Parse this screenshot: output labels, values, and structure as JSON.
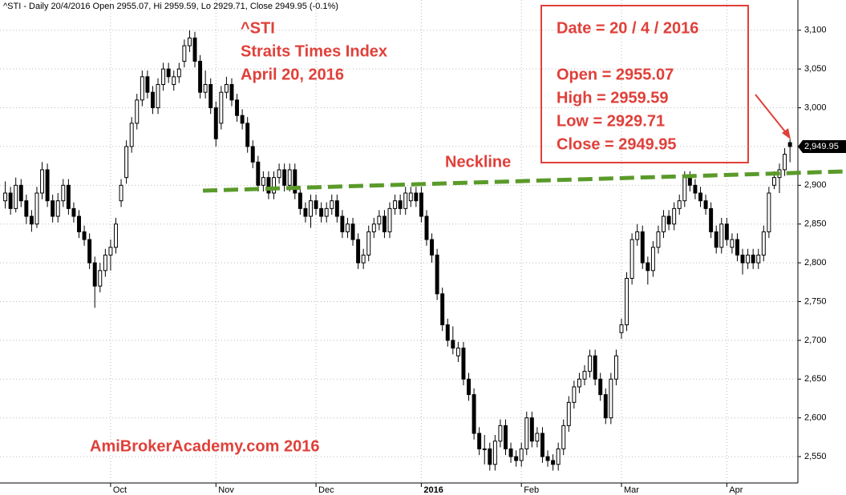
{
  "chart_data": {
    "type": "candlestick",
    "header": "^STI - Daily 20/4/2016 Open 2955.07, Hi 2959.59, Lo 2929.71, Close 2949.95 (-0.1%)",
    "annotations": [
      "^STI",
      "Straits Times Index",
      "April 20, 2016"
    ],
    "info_box": [
      "Date  = 20 / 4 / 2016",
      "Open = 2955.07",
      "High  = 2959.59",
      "Low    = 2929.71",
      "Close = 2949.95"
    ],
    "neckline_label": "Neckline",
    "watermark": "AmiBrokerAcademy.com  2016",
    "last_price": {
      "value": 2949.95,
      "label": "2,949.95"
    },
    "up_color": "#ffffff",
    "down_color": "#000000",
    "grid": true,
    "xlim": [
      -1,
      150.5
    ],
    "xticks": [
      {
        "value": 20,
        "label": "Oct"
      },
      {
        "value": 40,
        "label": "Nov"
      },
      {
        "value": 59,
        "label": "Dec"
      },
      {
        "value": 79,
        "label": "2016"
      },
      {
        "value": 98,
        "label": "Feb"
      },
      {
        "value": 117,
        "label": "Mar"
      },
      {
        "value": 137,
        "label": "Apr"
      }
    ],
    "ylim": [
      2516,
      3139
    ],
    "yticks": [
      {
        "value": 2550,
        "label": "2,550"
      },
      {
        "value": 2600,
        "label": "2,600"
      },
      {
        "value": 2650,
        "label": "2,650"
      },
      {
        "value": 2700,
        "label": "2,700"
      },
      {
        "value": 2750,
        "label": "2,750"
      },
      {
        "value": 2800,
        "label": "2,800"
      },
      {
        "value": 2850,
        "label": "2,850"
      },
      {
        "value": 2900,
        "label": "2,900"
      },
      {
        "value": 2950,
        "label": "2,950"
      },
      {
        "value": 3000,
        "label": "3,000"
      },
      {
        "value": 3050,
        "label": "3,050"
      },
      {
        "value": 3100,
        "label": "3,100"
      }
    ],
    "candles": [
      [
        2880,
        2905,
        2870,
        2890
      ],
      [
        2890,
        2898,
        2862,
        2870
      ],
      [
        2870,
        2910,
        2865,
        2900
      ],
      [
        2900,
        2908,
        2872,
        2880
      ],
      [
        2880,
        2888,
        2850,
        2860
      ],
      [
        2860,
        2868,
        2840,
        2850
      ],
      [
        2850,
        2898,
        2845,
        2890
      ],
      [
        2890,
        2930,
        2882,
        2920
      ],
      [
        2920,
        2928,
        2872,
        2880
      ],
      [
        2880,
        2888,
        2852,
        2860
      ],
      [
        2860,
        2890,
        2852,
        2880
      ],
      [
        2880,
        2908,
        2872,
        2900
      ],
      [
        2900,
        2908,
        2862,
        2870
      ],
      [
        2870,
        2878,
        2852,
        2860
      ],
      [
        2860,
        2868,
        2832,
        2840
      ],
      [
        2840,
        2848,
        2822,
        2830
      ],
      [
        2830,
        2838,
        2792,
        2800
      ],
      [
        2800,
        2808,
        2742,
        2770
      ],
      [
        2770,
        2800,
        2762,
        2790
      ],
      [
        2790,
        2818,
        2782,
        2810
      ],
      [
        2810,
        2830,
        2790,
        2820
      ],
      [
        2820,
        2858,
        2812,
        2850
      ],
      [
        2880,
        2908,
        2872,
        2900
      ],
      [
        2910,
        2958,
        2902,
        2950
      ],
      [
        2950,
        2988,
        2942,
        2980
      ],
      [
        2980,
        3018,
        2972,
        3010
      ],
      [
        3010,
        3048,
        3002,
        3040
      ],
      [
        3040,
        3048,
        3012,
        3020
      ],
      [
        3020,
        3028,
        2992,
        3000
      ],
      [
        3000,
        3038,
        2992,
        3030
      ],
      [
        3030,
        3058,
        3022,
        3050
      ],
      [
        3050,
        3058,
        3032,
        3040
      ],
      [
        3030,
        3048,
        3022,
        3040
      ],
      [
        3040,
        3058,
        3032,
        3050
      ],
      [
        3060,
        3088,
        3052,
        3080
      ],
      [
        3080,
        3100,
        3072,
        3090
      ],
      [
        3090,
        3098,
        3052,
        3060
      ],
      [
        3060,
        3068,
        3012,
        3020
      ],
      [
        3020,
        3048,
        3012,
        3030
      ],
      [
        3030,
        3038,
        2992,
        3000
      ],
      [
        3000,
        3008,
        2950,
        2960
      ],
      [
        2980,
        3028,
        2972,
        3020
      ],
      [
        3020,
        3040,
        3012,
        3030
      ],
      [
        3030,
        3038,
        3002,
        3010
      ],
      [
        3010,
        3018,
        2982,
        2990
      ],
      [
        2990,
        2998,
        2972,
        2980
      ],
      [
        2980,
        2988,
        2942,
        2950
      ],
      [
        2950,
        2958,
        2922,
        2930
      ],
      [
        2930,
        2938,
        2892,
        2900
      ],
      [
        2900,
        2918,
        2892,
        2910
      ],
      [
        2910,
        2918,
        2882,
        2890
      ],
      [
        2890,
        2918,
        2882,
        2910
      ],
      [
        2910,
        2928,
        2902,
        2920
      ],
      [
        2920,
        2928,
        2892,
        2900
      ],
      [
        2900,
        2928,
        2892,
        2920
      ],
      [
        2920,
        2928,
        2882,
        2890
      ],
      [
        2890,
        2898,
        2862,
        2870
      ],
      [
        2870,
        2878,
        2852,
        2860
      ],
      [
        2860,
        2888,
        2845,
        2880
      ],
      [
        2880,
        2888,
        2862,
        2870
      ],
      [
        2870,
        2878,
        2852,
        2860
      ],
      [
        2860,
        2878,
        2852,
        2870
      ],
      [
        2870,
        2888,
        2862,
        2880
      ],
      [
        2880,
        2888,
        2852,
        2860
      ],
      [
        2860,
        2868,
        2832,
        2840
      ],
      [
        2840,
        2858,
        2832,
        2850
      ],
      [
        2850,
        2858,
        2822,
        2830
      ],
      [
        2830,
        2838,
        2792,
        2800
      ],
      [
        2800,
        2818,
        2792,
        2810
      ],
      [
        2810,
        2848,
        2802,
        2840
      ],
      [
        2840,
        2858,
        2832,
        2850
      ],
      [
        2850,
        2868,
        2842,
        2860
      ],
      [
        2860,
        2868,
        2832,
        2840
      ],
      [
        2840,
        2878,
        2832,
        2870
      ],
      [
        2870,
        2888,
        2862,
        2880
      ],
      [
        2880,
        2888,
        2862,
        2870
      ],
      [
        2870,
        2898,
        2862,
        2890
      ],
      [
        2880,
        2898,
        2872,
        2890
      ],
      [
        2890,
        2898,
        2872,
        2880
      ],
      [
        2890,
        2898,
        2852,
        2860
      ],
      [
        2860,
        2868,
        2822,
        2830
      ],
      [
        2830,
        2838,
        2800,
        2810
      ],
      [
        2810,
        2818,
        2752,
        2760
      ],
      [
        2760,
        2768,
        2712,
        2720
      ],
      [
        2720,
        2728,
        2692,
        2700
      ],
      [
        2700,
        2718,
        2682,
        2690
      ],
      [
        2680,
        2698,
        2672,
        2690
      ],
      [
        2690,
        2698,
        2642,
        2650
      ],
      [
        2650,
        2658,
        2622,
        2630
      ],
      [
        2630,
        2638,
        2572,
        2580
      ],
      [
        2580,
        2588,
        2552,
        2560
      ],
      [
        2560,
        2578,
        2540,
        2560
      ],
      [
        2560,
        2568,
        2532,
        2540
      ],
      [
        2540,
        2578,
        2532,
        2570
      ],
      [
        2570,
        2598,
        2562,
        2590
      ],
      [
        2590,
        2598,
        2552,
        2560
      ],
      [
        2560,
        2568,
        2542,
        2550
      ],
      [
        2550,
        2558,
        2537,
        2545
      ],
      [
        2545,
        2568,
        2537,
        2560
      ],
      [
        2560,
        2608,
        2552,
        2600
      ],
      [
        2600,
        2608,
        2562,
        2570
      ],
      [
        2570,
        2588,
        2562,
        2580
      ],
      [
        2580,
        2588,
        2542,
        2550
      ],
      [
        2550,
        2558,
        2537,
        2545
      ],
      [
        2545,
        2553,
        2532,
        2540
      ],
      [
        2540,
        2568,
        2532,
        2560
      ],
      [
        2560,
        2598,
        2552,
        2590
      ],
      [
        2590,
        2628,
        2582,
        2620
      ],
      [
        2620,
        2648,
        2612,
        2640
      ],
      [
        2640,
        2658,
        2632,
        2650
      ],
      [
        2650,
        2668,
        2642,
        2660
      ],
      [
        2660,
        2688,
        2652,
        2680
      ],
      [
        2680,
        2688,
        2642,
        2650
      ],
      [
        2650,
        2658,
        2622,
        2630
      ],
      [
        2630,
        2638,
        2592,
        2600
      ],
      [
        2600,
        2658,
        2592,
        2650
      ],
      [
        2650,
        2688,
        2642,
        2680
      ],
      [
        2710,
        2728,
        2702,
        2720
      ],
      [
        2720,
        2788,
        2712,
        2780
      ],
      [
        2780,
        2838,
        2772,
        2830
      ],
      [
        2830,
        2850,
        2822,
        2840
      ],
      [
        2840,
        2848,
        2792,
        2800
      ],
      [
        2800,
        2808,
        2772,
        2790
      ],
      [
        2790,
        2828,
        2782,
        2820
      ],
      [
        2820,
        2848,
        2812,
        2840
      ],
      [
        2840,
        2868,
        2832,
        2860
      ],
      [
        2860,
        2868,
        2842,
        2850
      ],
      [
        2850,
        2878,
        2842,
        2870
      ],
      [
        2870,
        2888,
        2862,
        2880
      ],
      [
        2880,
        2918,
        2872,
        2910
      ],
      [
        2910,
        2918,
        2892,
        2900
      ],
      [
        2900,
        2908,
        2882,
        2890
      ],
      [
        2890,
        2898,
        2872,
        2880
      ],
      [
        2880,
        2888,
        2862,
        2870
      ],
      [
        2870,
        2878,
        2832,
        2840
      ],
      [
        2840,
        2848,
        2812,
        2820
      ],
      [
        2820,
        2858,
        2812,
        2850
      ],
      [
        2850,
        2858,
        2822,
        2830
      ],
      [
        2820,
        2838,
        2812,
        2830
      ],
      [
        2830,
        2838,
        2802,
        2810
      ],
      [
        2810,
        2818,
        2785,
        2800
      ],
      [
        2800,
        2818,
        2792,
        2810
      ],
      [
        2810,
        2818,
        2792,
        2800
      ],
      [
        2800,
        2818,
        2792,
        2810
      ],
      [
        2810,
        2848,
        2802,
        2840
      ],
      [
        2840,
        2898,
        2832,
        2890
      ],
      [
        2900,
        2918,
        2895,
        2910
      ],
      [
        2910,
        2928,
        2890,
        2920
      ],
      [
        2920,
        2948,
        2912,
        2940
      ],
      [
        2955.07,
        2959.59,
        2929.71,
        2949.95
      ]
    ]
  }
}
